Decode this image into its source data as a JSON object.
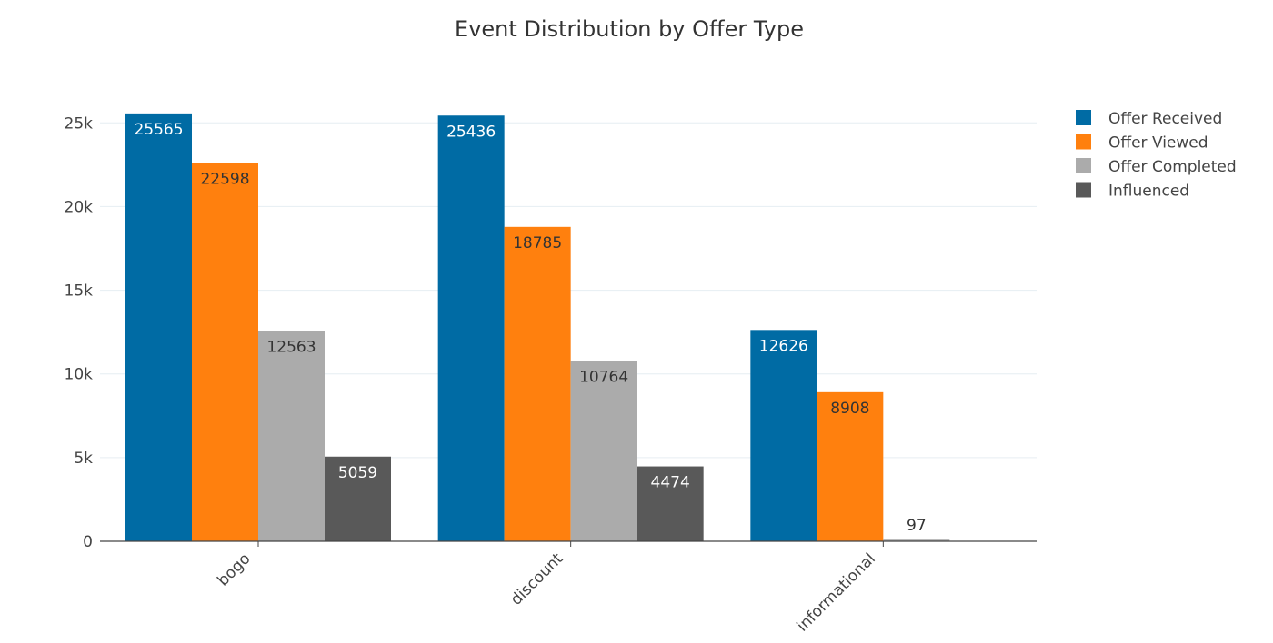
{
  "chart_data": {
    "type": "bar",
    "title": "Event Distribution by Offer Type",
    "xlabel": "",
    "ylabel": "",
    "categories": [
      "bogo",
      "discount",
      "informational"
    ],
    "series": [
      {
        "name": "Offer Received",
        "color": "#006ba4",
        "label_color": "#ffffff",
        "values": [
          25565,
          25436,
          12626
        ]
      },
      {
        "name": "Offer Viewed",
        "color": "#ff800e",
        "label_color": "#333333",
        "values": [
          22598,
          18785,
          8908
        ]
      },
      {
        "name": "Offer Completed",
        "color": "#ababab",
        "label_color": "#333333",
        "values": [
          12563,
          10764,
          97
        ]
      },
      {
        "name": "Influenced",
        "color": "#595959",
        "label_color": "#ffffff",
        "values": [
          5059,
          4474,
          null
        ]
      }
    ],
    "ylim": [
      0,
      28000
    ],
    "yticks": [
      0,
      5000,
      10000,
      15000,
      20000,
      25000
    ],
    "ytick_labels": [
      "0",
      "5k",
      "10k",
      "15k",
      "20k",
      "25k"
    ],
    "grid": true,
    "legend_position": "top-right"
  }
}
